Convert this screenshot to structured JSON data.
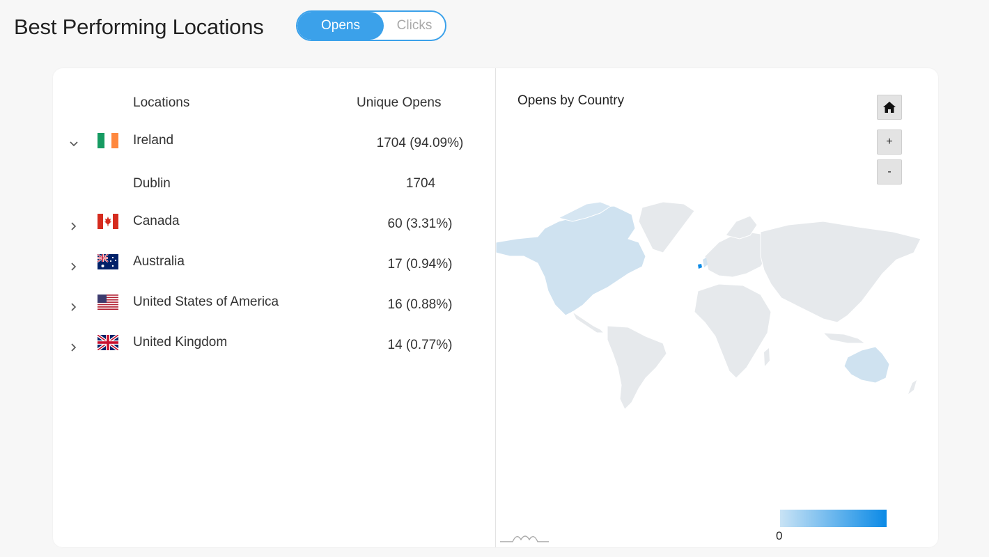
{
  "page": {
    "title": "Best Performing Locations"
  },
  "toggle": {
    "options": [
      "Opens",
      "Clicks"
    ],
    "active": "Opens"
  },
  "table": {
    "headers": [
      "Locations",
      "Unique Opens"
    ],
    "rows": [
      {
        "name": "Ireland",
        "value": "1704 (94.09%)",
        "flag": "ireland-flag",
        "expanded": true
      },
      {
        "name": "Dublin",
        "value": "1704",
        "sub": true
      },
      {
        "name": "Canada",
        "value": "60 (3.31%)",
        "flag": "canada-flag"
      },
      {
        "name": "Australia",
        "value": "17 (0.94%)",
        "flag": "australia-flag"
      },
      {
        "name": "United States of America",
        "value": "16 (0.88%)",
        "flag": "usa-flag"
      },
      {
        "name": "United Kingdom",
        "value": "14 (0.77%)",
        "flag": "uk-flag"
      }
    ]
  },
  "map": {
    "title": "Opens by Country",
    "controls": {
      "zoom_in": "+",
      "zoom_out": "-"
    },
    "legend_min": "0",
    "colors": {
      "land": "#e6e9ec",
      "low": "#cfe2f0",
      "high": "#0b8ae6",
      "accent": "#3ba1ea"
    }
  }
}
